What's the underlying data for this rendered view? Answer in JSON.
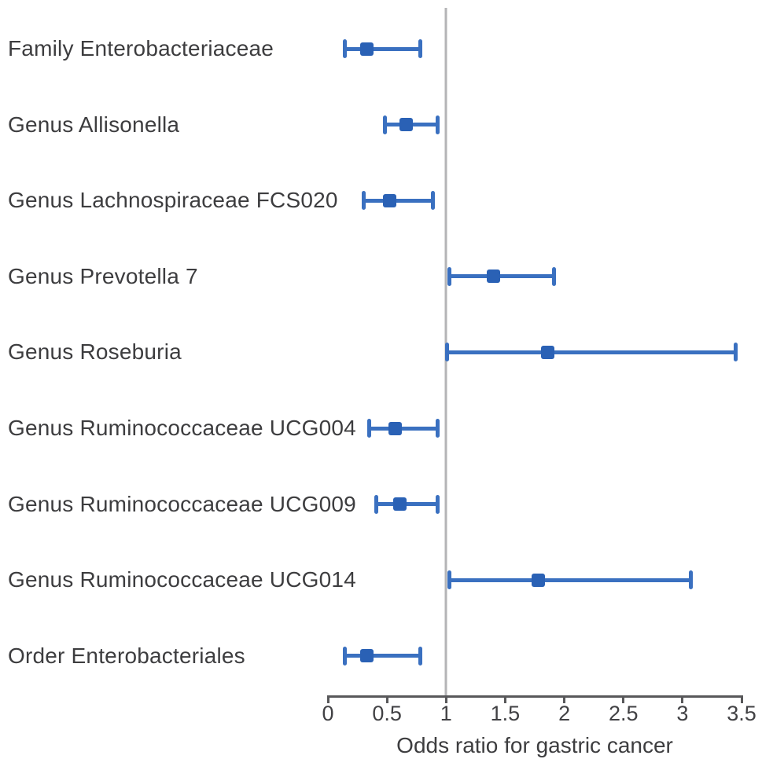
{
  "colors": {
    "bar_line": "#3a70c0",
    "marker": "#2a61b5",
    "reference_line": "#b4b4b6",
    "axis": "#58585a",
    "text": "#3d3d3f"
  },
  "chart_data": {
    "type": "forest",
    "title": "",
    "xlabel": "Odds ratio for gastric cancer",
    "xlim": [
      0,
      3.5
    ],
    "x_ticks": [
      0,
      0.5,
      1,
      1.5,
      2,
      2.5,
      3,
      3.5
    ],
    "x_tick_labels": [
      "0",
      "0.5",
      "1",
      "1.5",
      "2",
      "2.5",
      "3",
      "3.5"
    ],
    "reference_line_x": 1,
    "grid": false,
    "legend": "none",
    "rows": [
      {
        "label": "Family Enterobacteriaceae",
        "or": 0.33,
        "ci_low": 0.14,
        "ci_high": 0.78
      },
      {
        "label": "Genus Allisonella",
        "or": 0.66,
        "ci_low": 0.48,
        "ci_high": 0.93
      },
      {
        "label": "Genus Lachnospiraceae FCS020",
        "or": 0.52,
        "ci_low": 0.3,
        "ci_high": 0.89
      },
      {
        "label": "Genus Prevotella 7",
        "or": 1.4,
        "ci_low": 1.03,
        "ci_high": 1.91
      },
      {
        "label": "Genus Roseburia",
        "or": 1.86,
        "ci_low": 1.01,
        "ci_high": 3.45
      },
      {
        "label": "Genus Ruminococcaceae UCG004",
        "or": 0.57,
        "ci_low": 0.35,
        "ci_high": 0.93
      },
      {
        "label": "Genus Ruminococcaceae UCG009",
        "or": 0.61,
        "ci_low": 0.41,
        "ci_high": 0.93
      },
      {
        "label": "Genus Ruminococcaceae UCG014",
        "or": 1.78,
        "ci_low": 1.03,
        "ci_high": 3.07
      },
      {
        "label": "Order Enterobacteriales",
        "or": 0.33,
        "ci_low": 0.14,
        "ci_high": 0.78
      }
    ]
  }
}
